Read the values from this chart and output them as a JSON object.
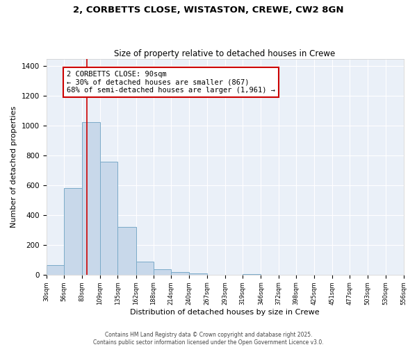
{
  "title1": "2, CORBETTS CLOSE, WISTASTON, CREWE, CW2 8GN",
  "title2": "Size of property relative to detached houses in Crewe",
  "xlabel": "Distribution of detached houses by size in Crewe",
  "ylabel": "Number of detached properties",
  "bar_color": "#c8d8ea",
  "bar_edge_color": "#7aaac8",
  "background_color": "#eaf0f8",
  "bins": [
    30,
    56,
    83,
    109,
    135,
    162,
    188,
    214,
    240,
    267,
    293,
    319,
    346,
    372,
    398,
    425,
    451,
    477,
    503,
    530,
    556
  ],
  "counts": [
    65,
    580,
    1025,
    760,
    320,
    87,
    38,
    17,
    8,
    0,
    0,
    6,
    0,
    0,
    0,
    0,
    0,
    0,
    0,
    0
  ],
  "tick_labels": [
    "30sqm",
    "56sqm",
    "83sqm",
    "109sqm",
    "135sqm",
    "162sqm",
    "188sqm",
    "214sqm",
    "240sqm",
    "267sqm",
    "293sqm",
    "319sqm",
    "346sqm",
    "372sqm",
    "398sqm",
    "425sqm",
    "451sqm",
    "477sqm",
    "503sqm",
    "530sqm",
    "556sqm"
  ],
  "vline_x": 90,
  "vline_color": "#cc0000",
  "annotation_title": "2 CORBETTS CLOSE: 90sqm",
  "annotation_line1": "← 30% of detached houses are smaller (867)",
  "annotation_line2": "68% of semi-detached houses are larger (1,961) →",
  "ylim": [
    0,
    1450
  ],
  "yticks": [
    0,
    200,
    400,
    600,
    800,
    1000,
    1200,
    1400
  ],
  "footer1": "Contains HM Land Registry data © Crown copyright and database right 2025.",
  "footer2": "Contains public sector information licensed under the Open Government Licence v3.0."
}
